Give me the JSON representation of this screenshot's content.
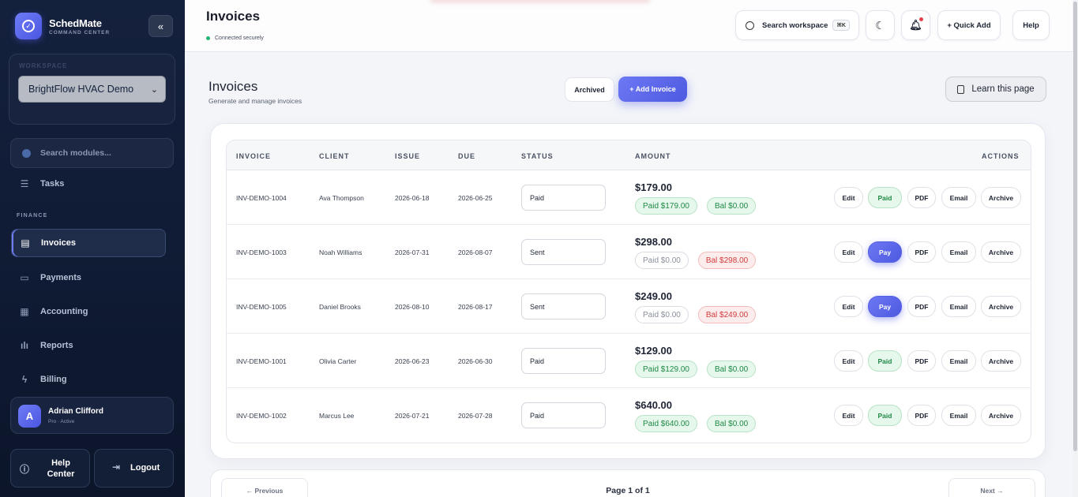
{
  "sidebar": {
    "brand_name": "SchedMate",
    "brand_sub": "COMMAND CENTER",
    "collapse_icon": "«",
    "workspace_label": "WORKSPACE",
    "workspace_value": "BrightFlow HVAC Demo",
    "module_search_placeholder": "Search modules...",
    "tasks_label": "Tasks",
    "finance_section": "FINANCE",
    "items": [
      {
        "label": "Invoices",
        "icon": "invoice-icon"
      },
      {
        "label": "Payments",
        "icon": "card-icon"
      },
      {
        "label": "Accounting",
        "icon": "calculator-icon"
      },
      {
        "label": "Reports",
        "icon": "bar-chart-icon"
      },
      {
        "label": "Billing",
        "icon": "bolt-icon"
      }
    ],
    "user": {
      "initial": "A",
      "name": "Adrian Clifford",
      "role": "Pro · Active"
    },
    "help_center": "Help Center",
    "logout": "Logout"
  },
  "header": {
    "title": "Invoices",
    "status": "Connected securely",
    "search_label": "Search workspace",
    "search_kbd": "⌘K",
    "quick_add": "+ Quick Add",
    "help": "Help"
  },
  "main": {
    "title": "Invoices",
    "subtitle": "Generate and manage invoices",
    "archived_label": "Archived",
    "add_label": "+ Add Invoice",
    "learn_label": "Learn this page"
  },
  "table": {
    "columns": {
      "invoice": "INVOICE",
      "client": "CLIENT",
      "issue": "ISSUE",
      "due": "DUE",
      "status": "STATUS",
      "amount": "AMOUNT",
      "actions": "ACTIONS"
    },
    "rows": [
      {
        "invoice": "INV-DEMO-1004",
        "client": "Ava Thompson",
        "issue": "2026-06-18",
        "due": "2026-06-25",
        "status": "Paid",
        "amount": "$179.00",
        "paid": "Paid $179.00",
        "bal": "Bal $0.00",
        "state": "paid",
        "primary": "Paid"
      },
      {
        "invoice": "INV-DEMO-1003",
        "client": "Noah Williams",
        "issue": "2026-07-31",
        "due": "2026-08-07",
        "status": "Sent",
        "amount": "$298.00",
        "paid": "Paid $0.00",
        "bal": "Bal $298.00",
        "state": "sent",
        "primary": "Pay"
      },
      {
        "invoice": "INV-DEMO-1005",
        "client": "Daniel Brooks",
        "issue": "2026-08-10",
        "due": "2026-08-17",
        "status": "Sent",
        "amount": "$249.00",
        "paid": "Paid $0.00",
        "bal": "Bal $249.00",
        "state": "sent",
        "primary": "Pay"
      },
      {
        "invoice": "INV-DEMO-1001",
        "client": "Olivia Carter",
        "issue": "2026-06-23",
        "due": "2026-06-30",
        "status": "Paid",
        "amount": "$129.00",
        "paid": "Paid $129.00",
        "bal": "Bal $0.00",
        "state": "paid",
        "primary": "Paid"
      },
      {
        "invoice": "INV-DEMO-1002",
        "client": "Marcus Lee",
        "issue": "2026-07-21",
        "due": "2026-07-28",
        "status": "Paid",
        "amount": "$640.00",
        "paid": "Paid $640.00",
        "bal": "Bal $0.00",
        "state": "paid",
        "primary": "Paid"
      }
    ],
    "actions": {
      "edit": "Edit",
      "pdf": "PDF",
      "email": "Email",
      "archive": "Archive"
    }
  },
  "pager": {
    "prev": "← Previous",
    "info": "Page 1 of 1",
    "next": "Next →"
  }
}
